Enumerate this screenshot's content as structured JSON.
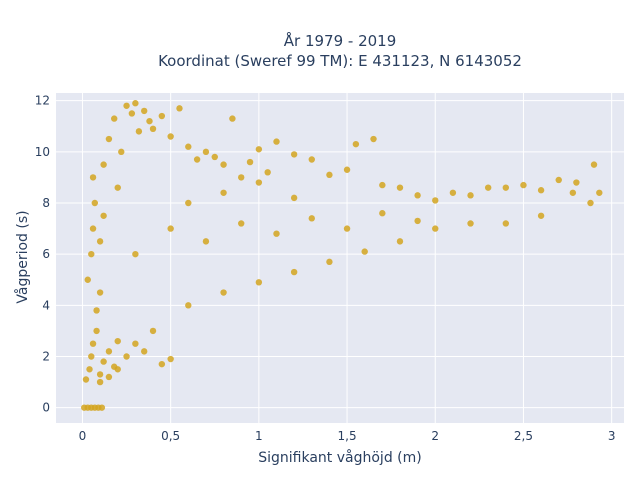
{
  "chart_data": {
    "type": "scatter",
    "title_lines": [
      "År 1979 - 2019",
      "Koordinat (Sweref 99 TM): E 431123, N 6143052"
    ],
    "xlabel": "Signifikant våghöjd (m)",
    "ylabel": "Vågperiod (s)",
    "xlim": [
      -0.15,
      3.07
    ],
    "ylim": [
      -0.6,
      12.3
    ],
    "x_ticks": [
      0,
      0.5,
      1,
      1.5,
      2,
      2.5,
      3
    ],
    "x_tick_labels": [
      "0",
      "0,5",
      "1",
      "1,5",
      "2",
      "2,5",
      "3"
    ],
    "y_ticks": [
      0,
      2,
      4,
      6,
      8,
      10,
      12
    ],
    "y_tick_labels": [
      "0",
      "2",
      "4",
      "6",
      "8",
      "10",
      "12"
    ],
    "grid": true,
    "legend": "none",
    "colors": {
      "marker": "#d4a520",
      "plot_background": "#e5e8f2",
      "gridline": "#ffffff",
      "text": "#2a3f5f"
    },
    "series": [
      {
        "points": [
          [
            0.01,
            0
          ],
          [
            0.03,
            0
          ],
          [
            0.05,
            0
          ],
          [
            0.07,
            0
          ],
          [
            0.09,
            0
          ],
          [
            0.11,
            0
          ],
          [
            0.02,
            1.1
          ],
          [
            0.04,
            1.5
          ],
          [
            0.05,
            2.0
          ],
          [
            0.06,
            2.5
          ],
          [
            0.08,
            3.0
          ],
          [
            0.1,
            1.3
          ],
          [
            0.12,
            1.8
          ],
          [
            0.15,
            2.2
          ],
          [
            0.18,
            1.6
          ],
          [
            0.2,
            2.6
          ],
          [
            0.03,
            5.0
          ],
          [
            0.05,
            6.0
          ],
          [
            0.06,
            7.0
          ],
          [
            0.07,
            8.0
          ],
          [
            0.06,
            9.0
          ],
          [
            0.08,
            3.8
          ],
          [
            0.1,
            4.5
          ],
          [
            0.1,
            6.5
          ],
          [
            0.12,
            7.5
          ],
          [
            0.12,
            9.5
          ],
          [
            0.15,
            10.5
          ],
          [
            0.18,
            11.3
          ],
          [
            0.2,
            8.6
          ],
          [
            0.22,
            10.0
          ],
          [
            0.25,
            11.8
          ],
          [
            0.28,
            11.5
          ],
          [
            0.3,
            11.9
          ],
          [
            0.32,
            10.8
          ],
          [
            0.35,
            11.6
          ],
          [
            0.38,
            11.2
          ],
          [
            0.4,
            10.9
          ],
          [
            0.45,
            11.4
          ],
          [
            0.5,
            10.6
          ],
          [
            0.55,
            11.7
          ],
          [
            0.6,
            10.2
          ],
          [
            0.65,
            9.7
          ],
          [
            0.7,
            10.0
          ],
          [
            0.75,
            9.8
          ],
          [
            0.8,
            9.5
          ],
          [
            0.85,
            11.3
          ],
          [
            0.9,
            9.0
          ],
          [
            0.95,
            9.6
          ],
          [
            1.0,
            10.1
          ],
          [
            1.05,
            9.2
          ],
          [
            1.1,
            10.4
          ],
          [
            1.2,
            9.9
          ],
          [
            1.3,
            9.7
          ],
          [
            1.4,
            9.1
          ],
          [
            1.5,
            9.3
          ],
          [
            1.55,
            10.3
          ],
          [
            1.65,
            10.5
          ],
          [
            1.7,
            8.7
          ],
          [
            1.8,
            8.6
          ],
          [
            1.9,
            8.3
          ],
          [
            2.0,
            8.1
          ],
          [
            2.1,
            8.4
          ],
          [
            2.2,
            8.3
          ],
          [
            2.3,
            8.6
          ],
          [
            2.4,
            8.6
          ],
          [
            2.5,
            8.7
          ],
          [
            2.6,
            8.5
          ],
          [
            2.7,
            8.9
          ],
          [
            2.8,
            8.8
          ],
          [
            2.9,
            9.5
          ],
          [
            2.93,
            8.4
          ],
          [
            2.88,
            8.0
          ],
          [
            2.78,
            8.4
          ],
          [
            2.6,
            7.5
          ],
          [
            2.4,
            7.2
          ],
          [
            2.2,
            7.2
          ],
          [
            2.0,
            7.0
          ],
          [
            1.8,
            6.5
          ],
          [
            1.6,
            6.1
          ],
          [
            1.4,
            5.7
          ],
          [
            1.2,
            5.3
          ],
          [
            1.0,
            4.9
          ],
          [
            0.8,
            4.5
          ],
          [
            0.6,
            4.0
          ],
          [
            0.4,
            3.0
          ],
          [
            0.3,
            2.5
          ],
          [
            0.25,
            2.0
          ],
          [
            0.35,
            2.2
          ],
          [
            0.5,
            1.9
          ],
          [
            0.45,
            1.7
          ],
          [
            0.2,
            1.5
          ],
          [
            0.15,
            1.2
          ],
          [
            0.1,
            1.0
          ],
          [
            0.3,
            6.0
          ],
          [
            0.5,
            7.0
          ],
          [
            0.7,
            6.5
          ],
          [
            0.9,
            7.2
          ],
          [
            1.1,
            6.8
          ],
          [
            1.3,
            7.4
          ],
          [
            1.5,
            7.0
          ],
          [
            1.7,
            7.6
          ],
          [
            1.9,
            7.3
          ],
          [
            0.6,
            8.0
          ],
          [
            0.8,
            8.4
          ],
          [
            1.0,
            8.8
          ],
          [
            1.2,
            8.2
          ]
        ]
      }
    ]
  }
}
